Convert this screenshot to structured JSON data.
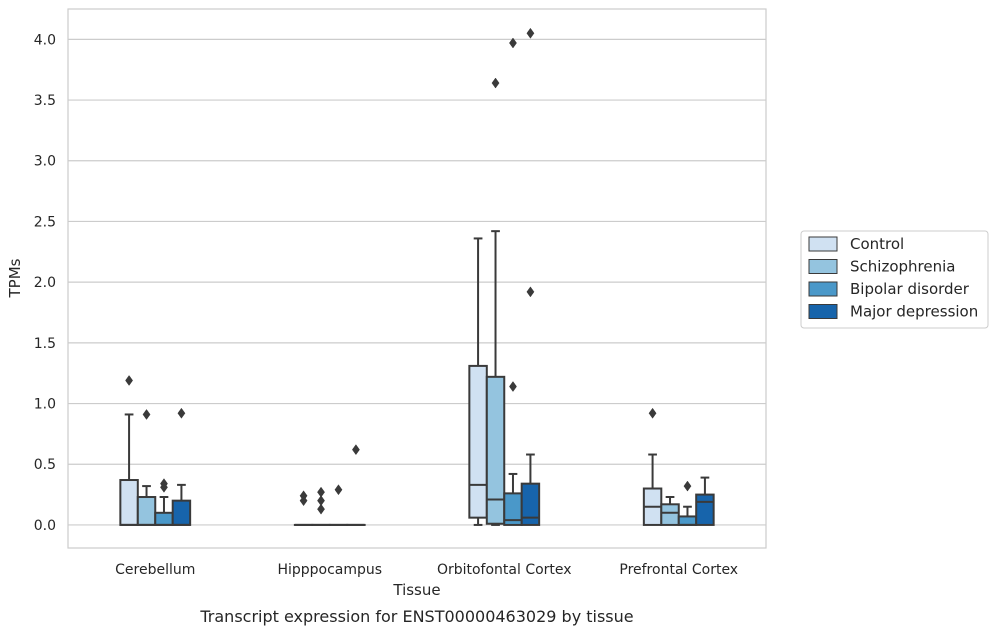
{
  "chart_data": {
    "type": "box",
    "title": "",
    "caption": "Transcript expression for ENST00000463029 by tissue",
    "xlabel": "Tissue",
    "ylabel": "TPMs",
    "ylim": [
      -0.19,
      4.25
    ],
    "yticks": [
      "0.0",
      "0.5",
      "1.0",
      "1.5",
      "2.0",
      "2.5",
      "3.0",
      "3.5",
      "4.0"
    ],
    "categories": [
      "Cerebellum",
      "Hipppocampus",
      "Orbitofontal Cortex",
      "Prefrontal Cortex"
    ],
    "grid": true,
    "legend_position": "right",
    "series": [
      {
        "name": "Control",
        "color": "#d0e1f2",
        "boxes": [
          {
            "q1": 0.0,
            "median": 0.0,
            "q3": 0.37,
            "whislo": 0.0,
            "whishi": 0.91,
            "fliers": [
              1.19
            ]
          },
          {
            "q1": 0.0,
            "median": 0.0,
            "q3": 0.0,
            "whislo": 0.0,
            "whishi": 0.0,
            "fliers": [
              0.2,
              0.24
            ]
          },
          {
            "q1": 0.06,
            "median": 0.33,
            "q3": 1.31,
            "whislo": 0.0,
            "whishi": 2.36,
            "fliers": []
          },
          {
            "q1": 0.0,
            "median": 0.15,
            "q3": 0.3,
            "whislo": 0.0,
            "whishi": 0.58,
            "fliers": [
              0.92
            ]
          }
        ]
      },
      {
        "name": "Schizophrenia",
        "color": "#94c4df",
        "boxes": [
          {
            "q1": 0.0,
            "median": 0.0,
            "q3": 0.23,
            "whislo": 0.0,
            "whishi": 0.32,
            "fliers": [
              0.91
            ]
          },
          {
            "q1": 0.0,
            "median": 0.0,
            "q3": 0.0,
            "whislo": 0.0,
            "whishi": 0.0,
            "fliers": [
              0.13,
              0.2,
              0.27
            ]
          },
          {
            "q1": 0.01,
            "median": 0.21,
            "q3": 1.22,
            "whislo": 0.0,
            "whishi": 2.42,
            "fliers": [
              3.64
            ]
          },
          {
            "q1": 0.0,
            "median": 0.1,
            "q3": 0.17,
            "whislo": 0.0,
            "whishi": 0.23,
            "fliers": []
          }
        ]
      },
      {
        "name": "Bipolar disorder",
        "color": "#4a98c9",
        "boxes": [
          {
            "q1": 0.0,
            "median": 0.0,
            "q3": 0.1,
            "whislo": 0.0,
            "whishi": 0.23,
            "fliers": [
              0.31,
              0.34
            ]
          },
          {
            "q1": 0.0,
            "median": 0.0,
            "q3": 0.0,
            "whislo": 0.0,
            "whishi": 0.0,
            "fliers": [
              0.29
            ]
          },
          {
            "q1": 0.0,
            "median": 0.04,
            "q3": 0.26,
            "whislo": 0.0,
            "whishi": 0.42,
            "fliers": [
              1.14,
              3.97
            ]
          },
          {
            "q1": 0.0,
            "median": 0.0,
            "q3": 0.07,
            "whislo": 0.0,
            "whishi": 0.15,
            "fliers": [
              0.32
            ]
          }
        ]
      },
      {
        "name": "Major depression",
        "color": "#1764ab",
        "boxes": [
          {
            "q1": 0.0,
            "median": 0.0,
            "q3": 0.2,
            "whislo": 0.0,
            "whishi": 0.33,
            "fliers": [
              0.92
            ]
          },
          {
            "q1": 0.0,
            "median": 0.0,
            "q3": 0.0,
            "whislo": 0.0,
            "whishi": 0.0,
            "fliers": [
              0.62
            ]
          },
          {
            "q1": 0.0,
            "median": 0.06,
            "q3": 0.34,
            "whislo": 0.0,
            "whishi": 0.58,
            "fliers": [
              1.92,
              4.05
            ]
          },
          {
            "q1": 0.0,
            "median": 0.19,
            "q3": 0.25,
            "whislo": 0.0,
            "whishi": 0.39,
            "fliers": []
          }
        ]
      }
    ]
  }
}
